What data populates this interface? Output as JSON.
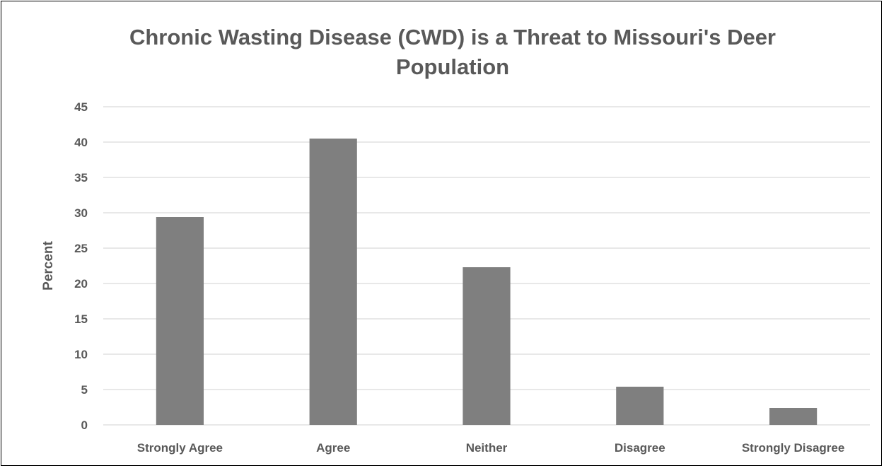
{
  "chart_data": {
    "type": "bar",
    "title": "Chronic Wasting Disease (CWD) is a Threat to Missouri's Deer Population",
    "xlabel": "",
    "ylabel": "Percent",
    "categories": [
      "Strongly Agree",
      "Agree",
      "Neither",
      "Disagree",
      "Strongly Disagree"
    ],
    "values": [
      29.4,
      40.5,
      22.3,
      5.4,
      2.4
    ],
    "ylim": [
      0,
      45
    ],
    "yticks": [
      0,
      5,
      10,
      15,
      20,
      25,
      30,
      35,
      40,
      45
    ],
    "grid": true,
    "legend": "none",
    "colors": {
      "bar": "#7f7f7f",
      "gridline": "#d9d9d9",
      "text": "#595959"
    }
  }
}
